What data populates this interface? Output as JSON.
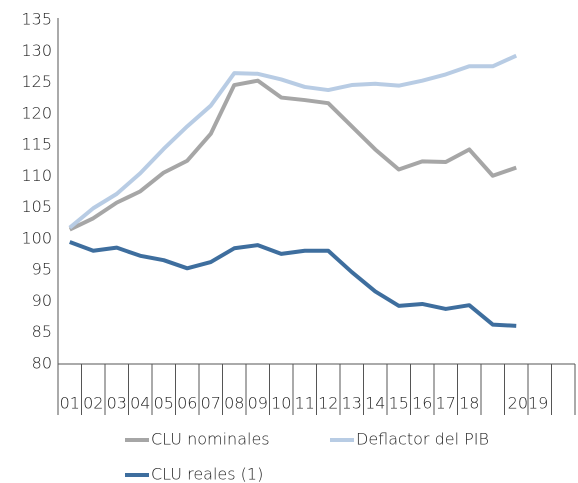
{
  "chart_data": {
    "type": "line",
    "categories": [
      "01",
      "02",
      "03",
      "04",
      "05",
      "06",
      "07",
      "08",
      "09",
      "10",
      "11",
      "12",
      "13",
      "14",
      "15",
      "16",
      "17",
      "18",
      null,
      null,
      null,
      null
    ],
    "period_label": "2019",
    "series": [
      {
        "name": "CLU nominales",
        "color": "#a6a6a6",
        "values": [
          101.5,
          103.3,
          105.8,
          107.6,
          110.6,
          112.5,
          116.8,
          124.6,
          125.3,
          122.6,
          122.2,
          121.7,
          118,
          114.3,
          111.1,
          112.4,
          112.3,
          114.3,
          110.1,
          111.4,
          null,
          null
        ]
      },
      {
        "name": "Deflactor del PIB",
        "color": "#b8cce4",
        "values": [
          101.8,
          104.9,
          107.2,
          110.5,
          114.4,
          118,
          121.3,
          126.5,
          126.4,
          125.5,
          124.3,
          123.8,
          124.6,
          124.8,
          124.5,
          125.3,
          126.3,
          127.6,
          127.6,
          129.3,
          null,
          null
        ]
      },
      {
        "name": "CLU reales (1)",
        "color": "#3e6e9e",
        "values": [
          99.5,
          98.1,
          98.6,
          97.3,
          96.6,
          95.3,
          96.3,
          98.5,
          99.0,
          97.6,
          98.1,
          98.1,
          94.7,
          91.6,
          89.3,
          89.6,
          88.8,
          89.4,
          86.3,
          86.1,
          null,
          null
        ]
      }
    ],
    "ylim": [
      80,
      135
    ],
    "yticks": [
      80,
      85,
      90,
      95,
      100,
      105,
      110,
      115,
      120,
      125,
      130,
      135
    ]
  }
}
